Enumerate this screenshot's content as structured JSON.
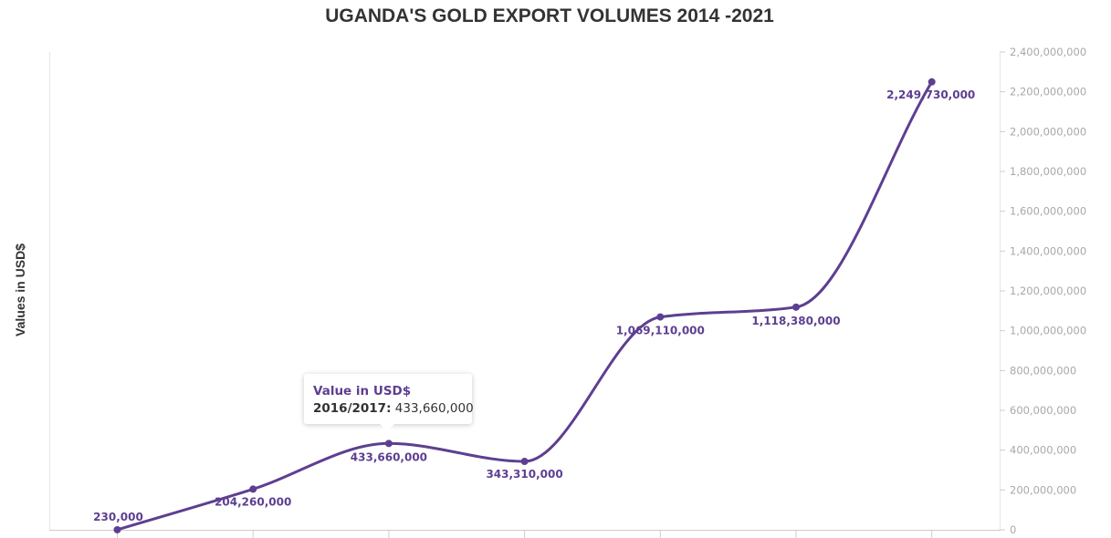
{
  "chart_data": {
    "type": "line",
    "title": "UGANDA'S GOLD EXPORT VOLUMES 2014 -2021",
    "ylabel": "Values in USD$",
    "xlabel": "",
    "ylim": [
      0,
      2400000000
    ],
    "yticks": [
      0,
      200000000,
      400000000,
      600000000,
      800000000,
      1000000000,
      1200000000,
      1400000000,
      1600000000,
      1800000000,
      2000000000,
      2200000000,
      2400000000
    ],
    "ytick_labels": [
      "0",
      "200,000,000",
      "400,000,000",
      "600,000,000",
      "800,000,000",
      "1,000,000,000",
      "1,200,000,000",
      "1,400,000,000",
      "1,600,000,000",
      "1,800,000,000",
      "2,000,000,000",
      "2,200,000,000",
      "2,400,000,000"
    ],
    "y_axis_side": "right",
    "categories": [
      "",
      "",
      "2016/2017",
      "",
      "",
      "",
      ""
    ],
    "series": [
      {
        "name": "Value in USD$",
        "color": "#5d3f91",
        "values": [
          230000,
          204260000,
          433660000,
          343310000,
          1069110000,
          1118380000,
          2249730000
        ],
        "labels": [
          "230,000",
          "204,260,000",
          "433,660,000",
          "343,310,000",
          "1,069,110,000",
          "1,118,380,000",
          "2,249,730,000"
        ]
      }
    ],
    "grid": false,
    "legend": "none",
    "tooltip": {
      "title": "Value in USD$",
      "category": "2016/2017:",
      "value": "433,660,000"
    }
  }
}
